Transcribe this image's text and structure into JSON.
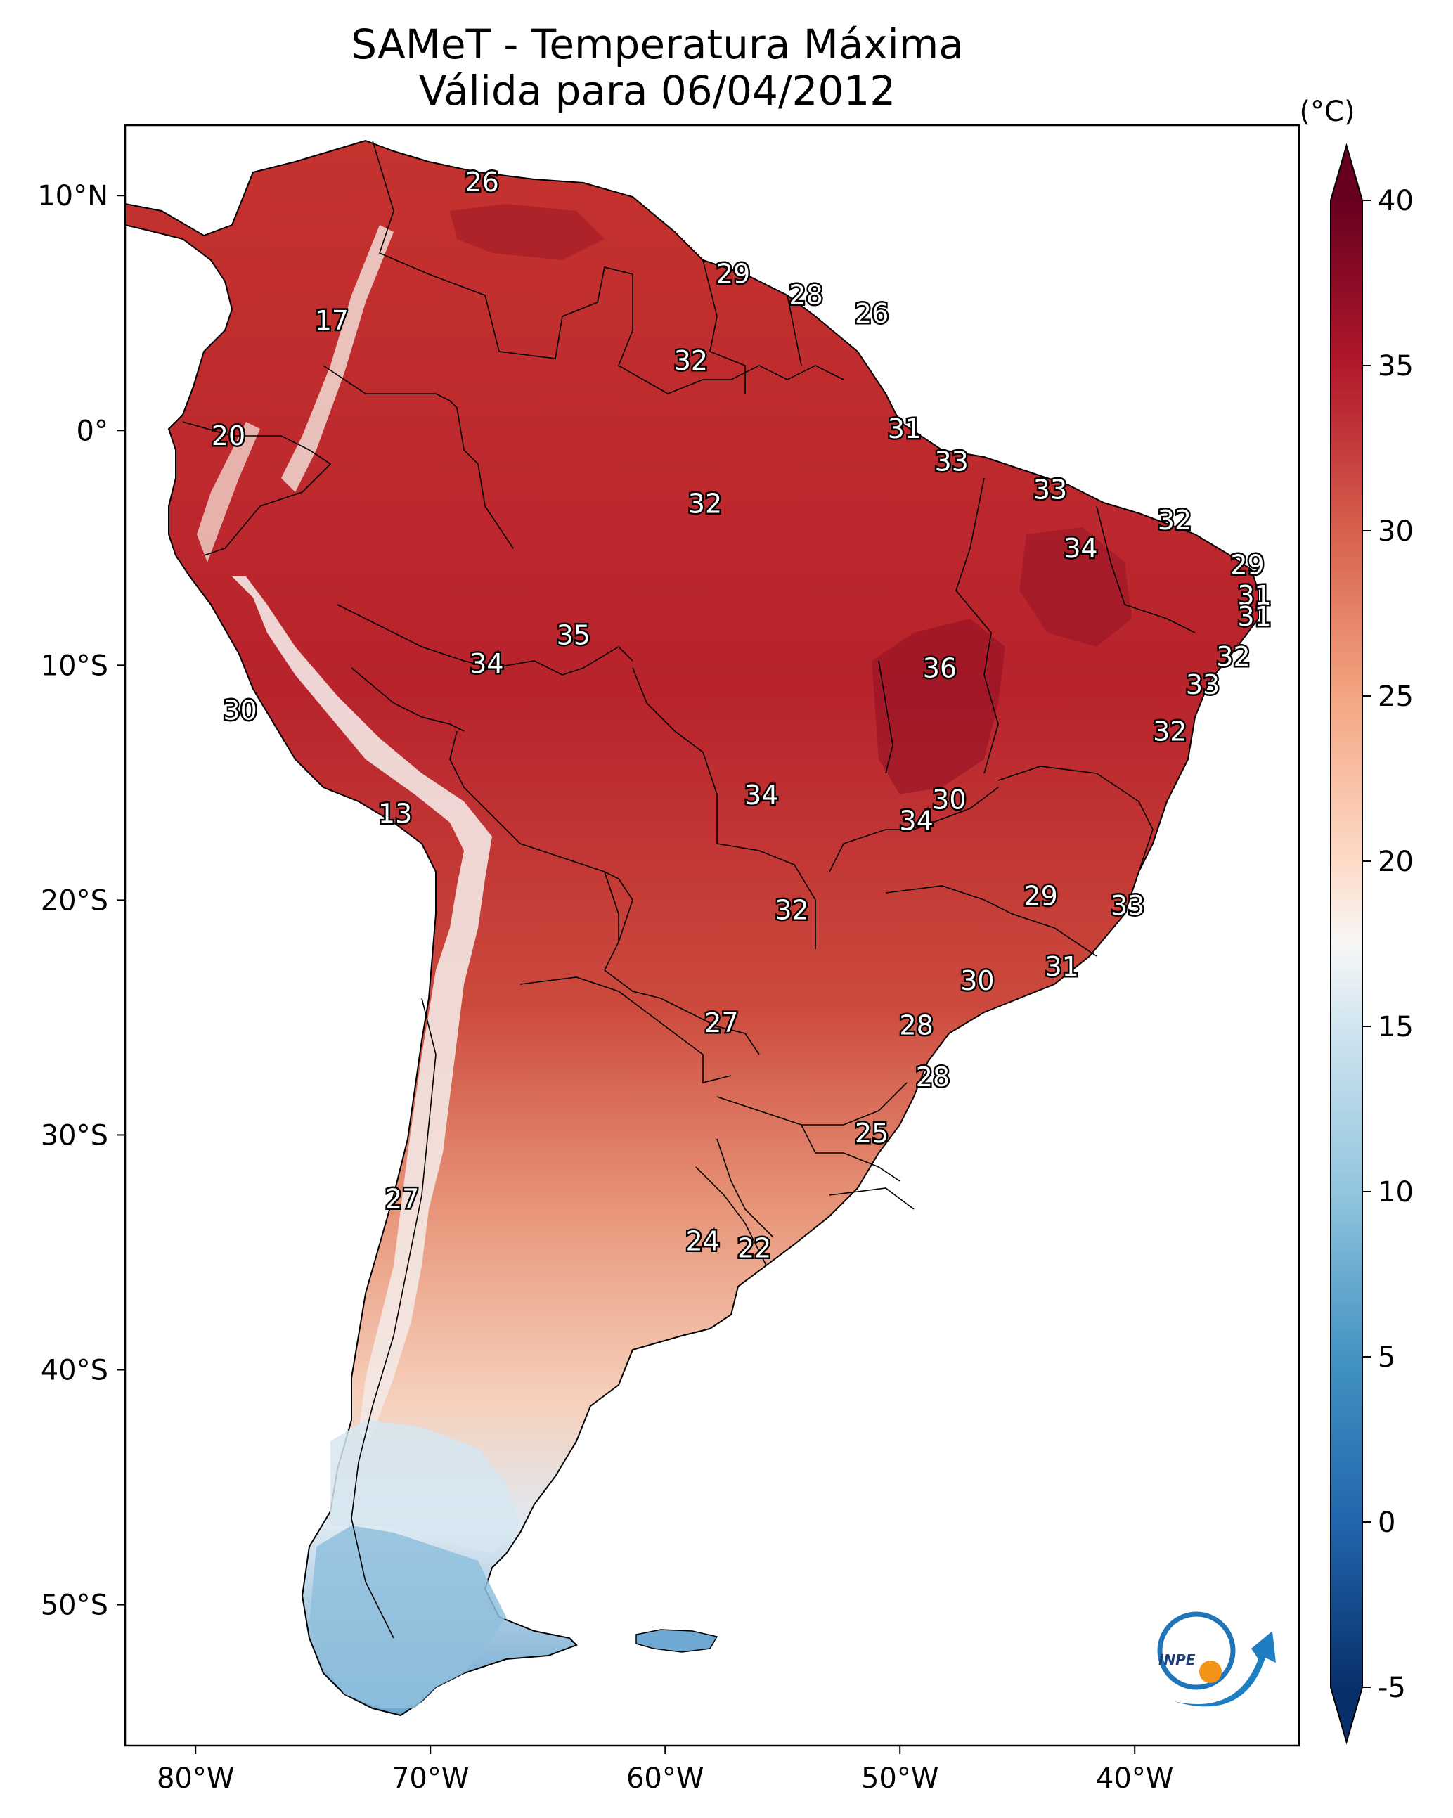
{
  "title": {
    "line1": "SAMeT - Temperatura Máxima",
    "line2": "Válida para 06/04/2012"
  },
  "map": {
    "lon_range": [
      -83,
      -33
    ],
    "lat_range": [
      -56,
      13
    ],
    "lon_ticks": [
      {
        "value": -80,
        "label": "80°W"
      },
      {
        "value": -70,
        "label": "70°W"
      },
      {
        "value": -60,
        "label": "60°W"
      },
      {
        "value": -50,
        "label": "50°W"
      },
      {
        "value": -40,
        "label": "40°W"
      }
    ],
    "lat_ticks": [
      {
        "value": 10,
        "label": "10°N"
      },
      {
        "value": 0,
        "label": "0°"
      },
      {
        "value": -10,
        "label": "10°S"
      },
      {
        "value": -20,
        "label": "20°S"
      },
      {
        "value": -30,
        "label": "30°S"
      },
      {
        "value": -40,
        "label": "40°S"
      },
      {
        "value": -50,
        "label": "50°S"
      }
    ],
    "station_labels": [
      {
        "lon": -67.8,
        "lat": 10.5,
        "value": "26"
      },
      {
        "lon": -57.1,
        "lat": 6.6,
        "value": "29"
      },
      {
        "lon": -54.0,
        "lat": 5.7,
        "value": "28"
      },
      {
        "lon": -51.2,
        "lat": 4.9,
        "value": "26"
      },
      {
        "lon": -74.2,
        "lat": 4.6,
        "value": "17"
      },
      {
        "lon": -58.9,
        "lat": 2.9,
        "value": "32"
      },
      {
        "lon": -78.6,
        "lat": -0.3,
        "value": "20"
      },
      {
        "lon": -49.8,
        "lat": 0.0,
        "value": "31"
      },
      {
        "lon": -47.8,
        "lat": -1.4,
        "value": "33"
      },
      {
        "lon": -58.3,
        "lat": -3.2,
        "value": "32"
      },
      {
        "lon": -43.6,
        "lat": -2.6,
        "value": "33"
      },
      {
        "lon": -38.3,
        "lat": -3.9,
        "value": "32"
      },
      {
        "lon": -42.3,
        "lat": -5.1,
        "value": "34"
      },
      {
        "lon": -35.2,
        "lat": -5.8,
        "value": "29"
      },
      {
        "lon": -34.9,
        "lat": -7.1,
        "value": "31"
      },
      {
        "lon": -34.9,
        "lat": -8.0,
        "value": "31"
      },
      {
        "lon": -63.9,
        "lat": -8.8,
        "value": "35"
      },
      {
        "lon": -67.6,
        "lat": -10.0,
        "value": "34"
      },
      {
        "lon": -48.3,
        "lat": -10.2,
        "value": "36"
      },
      {
        "lon": -35.8,
        "lat": -9.7,
        "value": "32"
      },
      {
        "lon": -37.1,
        "lat": -10.9,
        "value": "33"
      },
      {
        "lon": -78.1,
        "lat": -12.0,
        "value": "30"
      },
      {
        "lon": -38.5,
        "lat": -12.9,
        "value": "32"
      },
      {
        "lon": -55.9,
        "lat": -15.6,
        "value": "34"
      },
      {
        "lon": -47.9,
        "lat": -15.8,
        "value": "30"
      },
      {
        "lon": -49.3,
        "lat": -16.7,
        "value": "34"
      },
      {
        "lon": -71.5,
        "lat": -16.4,
        "value": "13"
      },
      {
        "lon": -44.0,
        "lat": -19.9,
        "value": "29"
      },
      {
        "lon": -54.6,
        "lat": -20.5,
        "value": "32"
      },
      {
        "lon": -40.3,
        "lat": -20.3,
        "value": "33"
      },
      {
        "lon": -43.1,
        "lat": -22.9,
        "value": "31"
      },
      {
        "lon": -46.7,
        "lat": -23.5,
        "value": "30"
      },
      {
        "lon": -57.6,
        "lat": -25.3,
        "value": "27"
      },
      {
        "lon": -49.3,
        "lat": -25.4,
        "value": "28"
      },
      {
        "lon": -48.6,
        "lat": -27.6,
        "value": "28"
      },
      {
        "lon": -51.2,
        "lat": -30.0,
        "value": "25"
      },
      {
        "lon": -71.2,
        "lat": -32.8,
        "value": "27"
      },
      {
        "lon": -58.4,
        "lat": -34.6,
        "value": "24"
      },
      {
        "lon": -56.2,
        "lat": -34.9,
        "value": "22"
      }
    ]
  },
  "colorbar": {
    "unit_label": "(°C)",
    "min": -5,
    "max": 40,
    "ticks": [
      {
        "value": 40,
        "label": "40"
      },
      {
        "value": 35,
        "label": "35"
      },
      {
        "value": 30,
        "label": "30"
      },
      {
        "value": 25,
        "label": "25"
      },
      {
        "value": 20,
        "label": "20"
      },
      {
        "value": 15,
        "label": "15"
      },
      {
        "value": 10,
        "label": "10"
      },
      {
        "value": 5,
        "label": "5"
      },
      {
        "value": 0,
        "label": "0"
      },
      {
        "value": -5,
        "label": "-5"
      }
    ],
    "stops": [
      {
        "value": -5,
        "color": "#08306b"
      },
      {
        "value": 0,
        "color": "#2166ac"
      },
      {
        "value": 5,
        "color": "#4393c3"
      },
      {
        "value": 10,
        "color": "#92c5de"
      },
      {
        "value": 15,
        "color": "#d1e5f0"
      },
      {
        "value": 17.5,
        "color": "#f7f7f7"
      },
      {
        "value": 20,
        "color": "#fddbc7"
      },
      {
        "value": 25,
        "color": "#f4a582"
      },
      {
        "value": 30,
        "color": "#d6604d"
      },
      {
        "value": 35,
        "color": "#b2182b"
      },
      {
        "value": 40,
        "color": "#67001f"
      }
    ]
  },
  "logo": {
    "text": "INPE"
  }
}
